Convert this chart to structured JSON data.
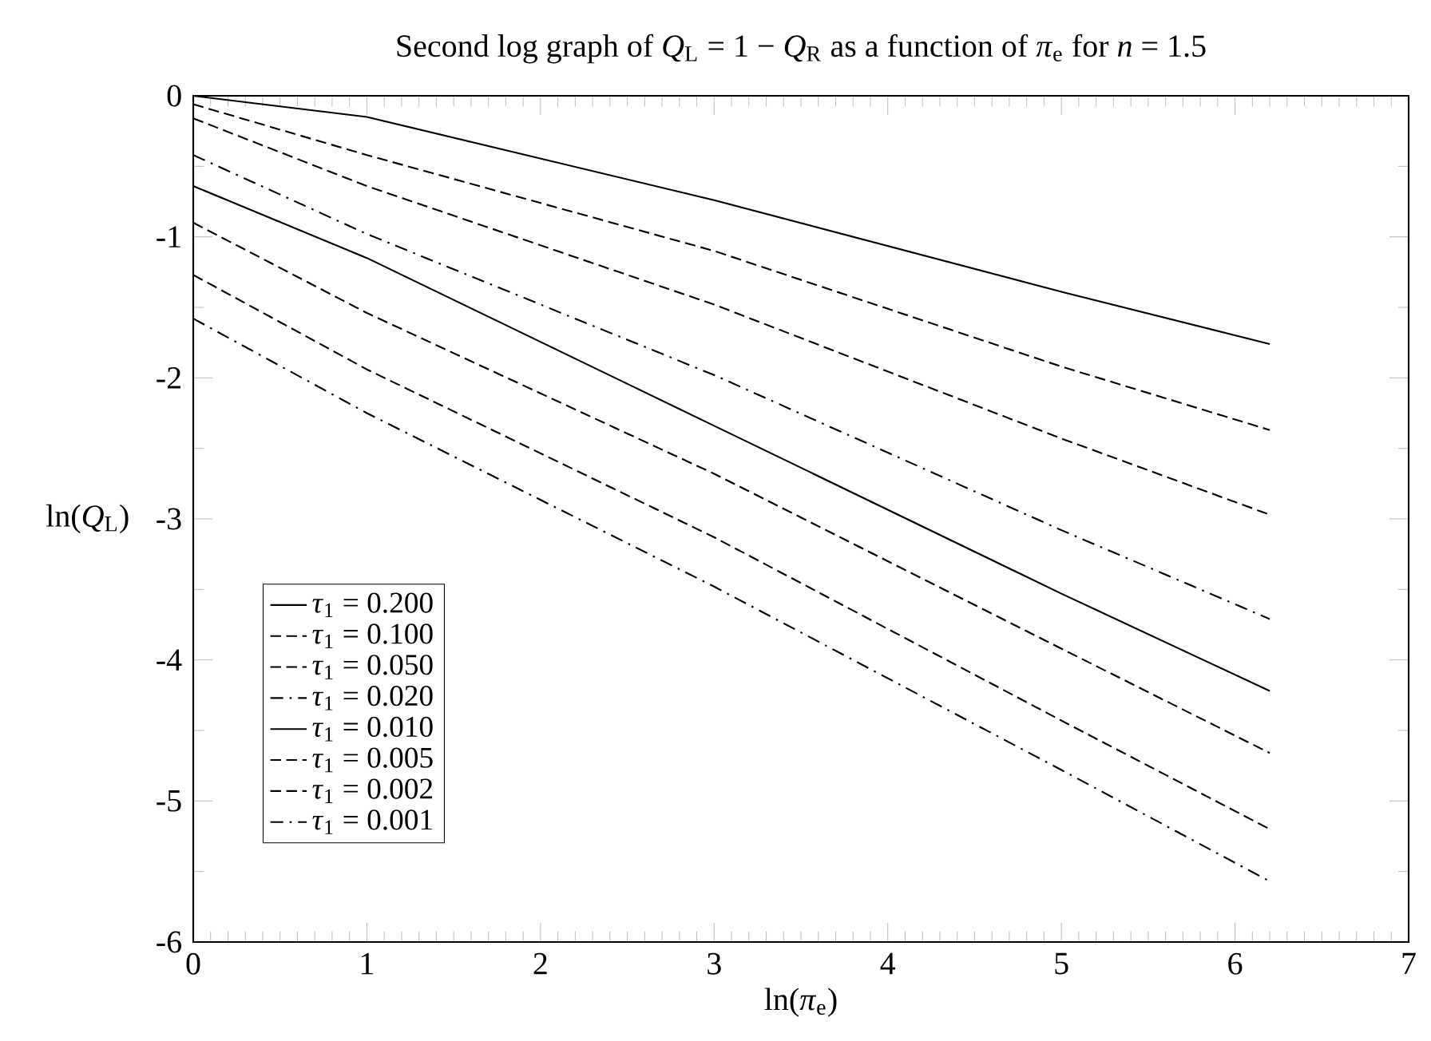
{
  "chart_data": {
    "type": "line",
    "title": "Second log graph of *Q*$_{L}$ = 1 − *Q*$_{R}$ as a function of *π*$_{e}$ for *n* = 1.5",
    "xlabel": "ln(*π*$_{e}$)",
    "ylabel": "ln(*Q*$_{L}$)",
    "x": [
      0,
      1,
      3,
      5,
      6.2
    ],
    "series": [
      {
        "name": "*τ*$_{1}$ = 0.200",
        "color": "#000000",
        "line_style": "solid",
        "values": [
          0,
          -0.15,
          -0.74,
          -1.39,
          -1.76
        ]
      },
      {
        "name": "*τ*$_{1}$ = 0.100",
        "color": "#000000",
        "line_style": "dashed",
        "values": [
          -0.06,
          -0.42,
          -1.1,
          -1.92,
          -2.37
        ]
      },
      {
        "name": "*τ*$_{1}$ = 0.050",
        "color": "#000000",
        "line_style": "dashed",
        "values": [
          -0.16,
          -0.64,
          -1.48,
          -2.43,
          -2.97
        ]
      },
      {
        "name": "*τ*$_{1}$ = 0.020",
        "color": "#000000",
        "line_style": "dashdot",
        "values": [
          -0.42,
          -0.98,
          -1.98,
          -3.08,
          -3.71
        ]
      },
      {
        "name": "*τ*$_{1}$ = 0.010",
        "color": "#000000",
        "line_style": "solid",
        "values": [
          -0.64,
          -1.15,
          -2.34,
          -3.53,
          -4.22
        ]
      },
      {
        "name": "*τ*$_{1}$ = 0.005",
        "color": "#000000",
        "line_style": "dashed",
        "values": [
          -0.9,
          -1.54,
          -2.68,
          -3.92,
          -4.66
        ]
      },
      {
        "name": "*τ*$_{1}$ = 0.002",
        "color": "#000000",
        "line_style": "dashed",
        "values": [
          -1.27,
          -1.94,
          -3.13,
          -4.43,
          -5.2
        ]
      },
      {
        "name": "*τ*$_{1}$ = 0.001",
        "color": "#000000",
        "line_style": "dashdot",
        "values": [
          -1.58,
          -2.25,
          -3.48,
          -4.78,
          -5.57
        ]
      }
    ],
    "xlim": [
      0,
      7
    ],
    "xticks": [
      0,
      1,
      2,
      3,
      4,
      5,
      6,
      7
    ],
    "ylim": [
      -6,
      0
    ],
    "yticks": [
      {
        "value": -6,
        "label": "-6"
      },
      {
        "value": -5,
        "label": "-5"
      },
      {
        "value": -4,
        "label": "-4"
      },
      {
        "value": -3,
        "label": "-3"
      },
      {
        "value": -2,
        "label": "-2"
      },
      {
        "value": -1,
        "label": "-1"
      },
      0
    ],
    "grid": false,
    "legend": "bottom left",
    "marker": "none"
  }
}
